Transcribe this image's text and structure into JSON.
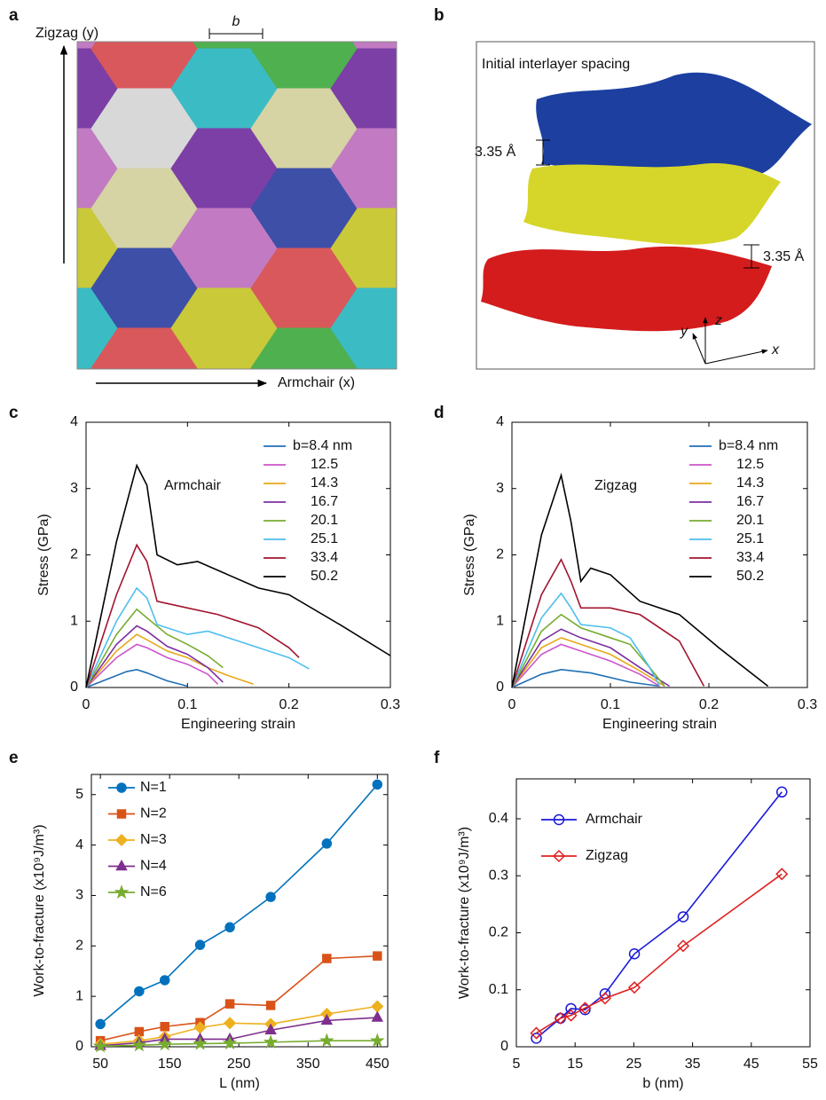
{
  "image_panels": {
    "a": {
      "label": "a",
      "y_axis_label": "Zigzag (y)",
      "x_axis_label": "Armchair (x)",
      "scale_label": "b"
    },
    "b": {
      "label": "b",
      "title": "Initial interlayer spacing",
      "spacing_labels": [
        "3.35 Å",
        "3.35 Å"
      ],
      "axis_labels": [
        "x",
        "y",
        "z"
      ]
    }
  },
  "chart_data": [
    {
      "type": "line",
      "panel": "c",
      "annotation": "Armchair",
      "xlabel": "Engineering strain",
      "ylabel": "Stress (GPa)",
      "xlim": [
        0,
        0.3
      ],
      "ylim": [
        0,
        4
      ],
      "xticks": [
        0,
        0.1,
        0.2,
        0.3
      ],
      "yticks": [
        0,
        1,
        2,
        3,
        4
      ],
      "series": [
        {
          "name": "b=8.4 nm",
          "color": "#1f6fb4",
          "x": [
            0,
            0.02,
            0.04,
            0.05,
            0.06,
            0.08,
            0.1
          ],
          "values": [
            0,
            0.12,
            0.24,
            0.27,
            0.22,
            0.1,
            0.02
          ]
        },
        {
          "name": "12.5",
          "color": "#cc55cc",
          "x": [
            0,
            0.03,
            0.05,
            0.06,
            0.08,
            0.1,
            0.12,
            0.13
          ],
          "values": [
            0,
            0.45,
            0.65,
            0.6,
            0.45,
            0.35,
            0.2,
            0.05
          ]
        },
        {
          "name": "14.3",
          "color": "#e6a817",
          "x": [
            0,
            0.03,
            0.05,
            0.06,
            0.08,
            0.1,
            0.12,
            0.14,
            0.165
          ],
          "values": [
            0,
            0.55,
            0.8,
            0.72,
            0.55,
            0.45,
            0.3,
            0.18,
            0.05
          ]
        },
        {
          "name": "16.7",
          "color": "#7b2fa0",
          "x": [
            0,
            0.03,
            0.05,
            0.06,
            0.08,
            0.1,
            0.12,
            0.135
          ],
          "values": [
            0,
            0.65,
            0.93,
            0.85,
            0.62,
            0.5,
            0.3,
            0.08
          ]
        },
        {
          "name": "20.1",
          "color": "#77ac30",
          "x": [
            0,
            0.03,
            0.05,
            0.06,
            0.08,
            0.1,
            0.12,
            0.135
          ],
          "values": [
            0,
            0.8,
            1.18,
            1.05,
            0.8,
            0.65,
            0.48,
            0.3
          ]
        },
        {
          "name": "25.1",
          "color": "#4dbeee",
          "x": [
            0,
            0.03,
            0.05,
            0.06,
            0.07,
            0.1,
            0.12,
            0.15,
            0.2,
            0.22
          ],
          "values": [
            0,
            1.0,
            1.5,
            1.35,
            0.95,
            0.8,
            0.85,
            0.7,
            0.45,
            0.28
          ]
        },
        {
          "name": "33.4",
          "color": "#a2142f",
          "x": [
            0,
            0.03,
            0.05,
            0.06,
            0.07,
            0.1,
            0.13,
            0.17,
            0.2,
            0.21
          ],
          "values": [
            0,
            1.4,
            2.15,
            1.9,
            1.3,
            1.2,
            1.1,
            0.9,
            0.6,
            0.45
          ]
        },
        {
          "name": "50.2",
          "color": "#000000",
          "x": [
            0,
            0.03,
            0.05,
            0.06,
            0.07,
            0.09,
            0.11,
            0.14,
            0.17,
            0.2,
            0.25,
            0.3
          ],
          "values": [
            0,
            2.2,
            3.35,
            3.05,
            2.0,
            1.85,
            1.9,
            1.7,
            1.5,
            1.4,
            0.95,
            0.48
          ]
        }
      ]
    },
    {
      "type": "line",
      "panel": "d",
      "annotation": "Zigzag",
      "xlabel": "Engineering strain",
      "ylabel": "Stress (GPa)",
      "xlim": [
        0,
        0.3
      ],
      "ylim": [
        0,
        4
      ],
      "xticks": [
        0,
        0.1,
        0.2,
        0.3
      ],
      "yticks": [
        0,
        1,
        2,
        3,
        4
      ],
      "series": [
        {
          "name": "b=8.4 nm",
          "color": "#1f6fb4",
          "x": [
            0,
            0.03,
            0.05,
            0.08,
            0.12,
            0.15
          ],
          "values": [
            0,
            0.2,
            0.27,
            0.22,
            0.08,
            0.02
          ]
        },
        {
          "name": "12.5",
          "color": "#cc55cc",
          "x": [
            0,
            0.03,
            0.05,
            0.07,
            0.1,
            0.13,
            0.15
          ],
          "values": [
            0,
            0.5,
            0.65,
            0.55,
            0.4,
            0.2,
            0.02
          ]
        },
        {
          "name": "14.3",
          "color": "#e6a817",
          "x": [
            0,
            0.03,
            0.05,
            0.07,
            0.1,
            0.13,
            0.155
          ],
          "values": [
            0,
            0.6,
            0.75,
            0.65,
            0.5,
            0.25,
            0.02
          ]
        },
        {
          "name": "16.7",
          "color": "#7b2fa0",
          "x": [
            0,
            0.03,
            0.05,
            0.07,
            0.1,
            0.13,
            0.16
          ],
          "values": [
            0,
            0.7,
            0.88,
            0.75,
            0.6,
            0.3,
            0.02
          ]
        },
        {
          "name": "20.1",
          "color": "#77ac30",
          "x": [
            0,
            0.03,
            0.05,
            0.07,
            0.1,
            0.12,
            0.14,
            0.155
          ],
          "values": [
            0,
            0.85,
            1.1,
            0.9,
            0.75,
            0.65,
            0.3,
            0.02
          ]
        },
        {
          "name": "25.1",
          "color": "#4dbeee",
          "x": [
            0,
            0.03,
            0.05,
            0.06,
            0.07,
            0.1,
            0.12,
            0.14,
            0.15
          ],
          "values": [
            0,
            1.05,
            1.42,
            1.2,
            0.95,
            0.9,
            0.75,
            0.3,
            0.02
          ]
        },
        {
          "name": "33.4",
          "color": "#a2142f",
          "x": [
            0,
            0.03,
            0.05,
            0.06,
            0.07,
            0.1,
            0.13,
            0.17,
            0.195
          ],
          "values": [
            0,
            1.4,
            1.93,
            1.6,
            1.2,
            1.2,
            1.1,
            0.7,
            0.02
          ]
        },
        {
          "name": "50.2",
          "color": "#000000",
          "x": [
            0,
            0.03,
            0.05,
            0.06,
            0.07,
            0.08,
            0.1,
            0.13,
            0.17,
            0.21,
            0.26
          ],
          "values": [
            0,
            2.3,
            3.2,
            2.5,
            1.6,
            1.8,
            1.7,
            1.3,
            1.1,
            0.6,
            0.02
          ]
        }
      ]
    },
    {
      "type": "line",
      "panel": "e",
      "xlabel": "L (nm)",
      "ylabel": "Work-to-fracture (x10⁹J/m³)",
      "xlim": [
        37,
        465
      ],
      "ylim": [
        0,
        5.4
      ],
      "xticks": [
        50,
        150,
        250,
        350,
        450
      ],
      "yticks": [
        0,
        1,
        2,
        3,
        4,
        5
      ],
      "x": [
        50,
        106,
        143,
        194,
        237,
        296,
        377,
        450
      ],
      "series": [
        {
          "name": "N=1",
          "color": "#0072bd",
          "marker": "circle",
          "values": [
            0.45,
            1.1,
            1.32,
            2.02,
            2.37,
            2.97,
            4.03,
            5.2
          ]
        },
        {
          "name": "N=2",
          "color": "#d95319",
          "marker": "square",
          "values": [
            0.12,
            0.3,
            0.4,
            0.48,
            0.85,
            0.82,
            1.75,
            1.8
          ]
        },
        {
          "name": "N=3",
          "color": "#edb120",
          "marker": "diamond",
          "values": [
            0.05,
            0.12,
            0.2,
            0.38,
            0.47,
            0.45,
            0.65,
            0.8
          ]
        },
        {
          "name": "N=4",
          "color": "#7e2f8e",
          "marker": "triangle",
          "values": [
            0.02,
            0.08,
            0.15,
            0.15,
            0.15,
            0.33,
            0.52,
            0.58
          ]
        },
        {
          "name": "N=6",
          "color": "#77ac30",
          "marker": "star",
          "values": [
            0.01,
            0.03,
            0.05,
            0.06,
            0.07,
            0.09,
            0.12,
            0.12
          ]
        }
      ]
    },
    {
      "type": "line",
      "panel": "f",
      "xlabel": "b (nm)",
      "ylabel": "Work-to-fracture (x10⁹J/m³)",
      "xlim": [
        5,
        55
      ],
      "ylim": [
        0,
        0.47
      ],
      "xticks": [
        5,
        15,
        25,
        35,
        45,
        55
      ],
      "yticks": [
        0,
        0.1,
        0.2,
        0.3,
        0.4
      ],
      "x": [
        8.4,
        12.5,
        14.3,
        16.7,
        20.1,
        25.1,
        33.4,
        50.2
      ],
      "series": [
        {
          "name": "Armchair",
          "color": "#1a1adb",
          "marker": "open-circle",
          "values": [
            0.015,
            0.05,
            0.067,
            0.065,
            0.093,
            0.163,
            0.228,
            0.447
          ]
        },
        {
          "name": "Zigzag",
          "color": "#e02020",
          "marker": "open-diamond",
          "values": [
            0.024,
            0.05,
            0.055,
            0.068,
            0.085,
            0.104,
            0.177,
            0.303
          ]
        }
      ]
    }
  ]
}
